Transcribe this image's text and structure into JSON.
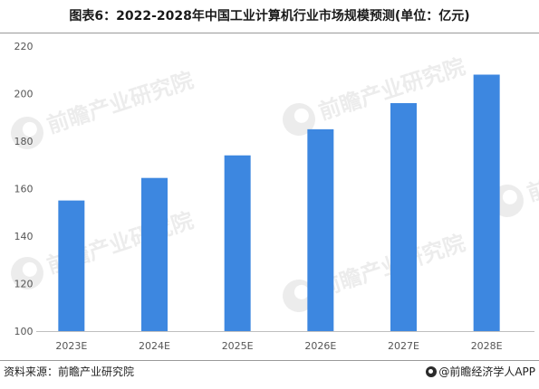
{
  "title": "图表6：2022-2028年中国工业计算机行业市场规模预测(单位：亿元)",
  "footer": {
    "source": "资料来源：前瞻产业研究院",
    "brand": "@前瞻经济学人APP",
    "brand_icon": "qianzhan-logo-icon"
  },
  "watermark": {
    "text": "前瞻产业研究院"
  },
  "colors": {
    "bar": "#3d87e0",
    "axis": "#bfbfbf",
    "tick_text": "#555555"
  },
  "chart_data": {
    "type": "bar",
    "categories": [
      "2023E",
      "2024E",
      "2025E",
      "2026E",
      "2027E",
      "2028E"
    ],
    "values": [
      155,
      164.5,
      174,
      185,
      196,
      208
    ],
    "ylim": [
      100,
      220
    ],
    "yticks": [
      100,
      120,
      140,
      160,
      180,
      200,
      220
    ],
    "grid": false,
    "legend": "none"
  }
}
